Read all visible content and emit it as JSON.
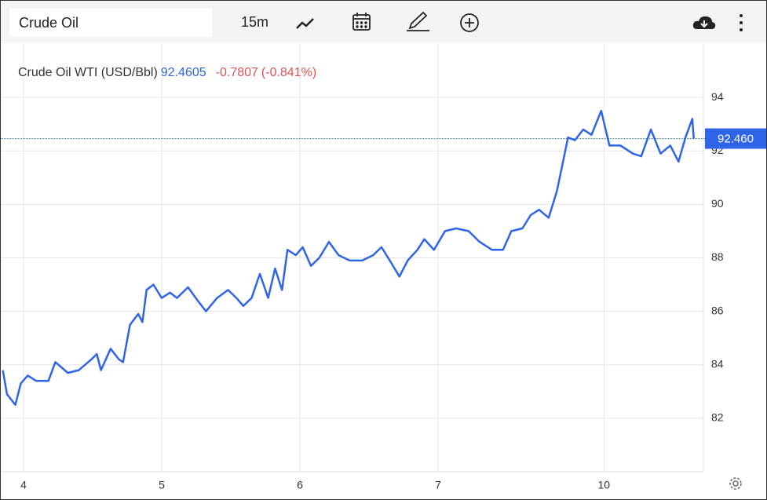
{
  "toolbar": {
    "symbol": "Crude Oil",
    "interval": "15m"
  },
  "chart_data": {
    "type": "line",
    "title": "Crude Oil WTI (USD/Bbl)",
    "last": 92.4605,
    "change": -0.7807,
    "change_percent_label": "(-0.841%)",
    "last_label": "92.460",
    "x": [
      -0.15,
      -0.12,
      -0.06,
      -0.02,
      0.03,
      0.09,
      0.18,
      0.23,
      0.32,
      0.4,
      0.49,
      0.53,
      0.56,
      0.63,
      0.69,
      0.72,
      0.77,
      0.83,
      0.86,
      0.89,
      0.94,
      1.0,
      1.06,
      1.11,
      1.19,
      1.26,
      1.32,
      1.4,
      1.48,
      1.54,
      1.59,
      1.65,
      1.71,
      1.77,
      1.82,
      1.87,
      1.91,
      1.97,
      2.02,
      2.08,
      2.14,
      2.21,
      2.28,
      2.36,
      2.45,
      2.53,
      2.59,
      2.65,
      2.72,
      2.78,
      2.85,
      2.9,
      2.97,
      3.05,
      3.13,
      3.22,
      3.3,
      3.39,
      3.47,
      3.53,
      3.61,
      3.67,
      3.73,
      3.8,
      3.86,
      3.9,
      3.94,
      3.99,
      4.05,
      4.11,
      4.18,
      4.24,
      4.32,
      4.41,
      4.47,
      4.54,
      4.61,
      4.68,
      4.74,
      4.79,
      4.84,
      4.85
    ],
    "series": [
      {
        "name": "Crude Oil WTI",
        "color": "#2f64e8",
        "values": [
          83.8,
          82.9,
          82.5,
          83.3,
          83.6,
          83.4,
          83.4,
          84.1,
          83.7,
          83.8,
          84.2,
          84.4,
          83.8,
          84.6,
          84.2,
          84.1,
          85.5,
          85.9,
          85.6,
          86.8,
          87.0,
          86.5,
          86.7,
          86.5,
          86.9,
          86.4,
          86.0,
          86.5,
          86.8,
          86.5,
          86.2,
          86.5,
          87.4,
          86.5,
          87.6,
          86.8,
          88.3,
          88.1,
          88.4,
          87.7,
          88.0,
          88.6,
          88.1,
          87.9,
          87.9,
          88.1,
          88.4,
          87.9,
          87.3,
          87.9,
          88.3,
          88.7,
          88.3,
          89.0,
          89.1,
          89.0,
          88.6,
          88.3,
          88.3,
          89.0,
          89.1,
          89.6,
          89.8,
          89.5,
          90.5,
          91.5,
          92.5,
          92.4,
          92.8,
          92.6,
          93.5,
          92.2,
          92.2,
          91.9,
          91.8,
          92.8,
          91.9,
          92.2,
          91.6,
          92.5,
          93.2,
          92.46
        ]
      }
    ],
    "xlim": [
      -0.165,
      4.92
    ],
    "xticks": [
      {
        "value": 0,
        "label": "4"
      },
      {
        "value": 1,
        "label": "5"
      },
      {
        "value": 2,
        "label": "6"
      },
      {
        "value": 3,
        "label": "7"
      },
      {
        "value": 4.2,
        "label": "10"
      }
    ],
    "ylim": [
      80,
      96
    ],
    "yticks": [
      82,
      84,
      86,
      88,
      90,
      92,
      94
    ],
    "grid": true
  }
}
